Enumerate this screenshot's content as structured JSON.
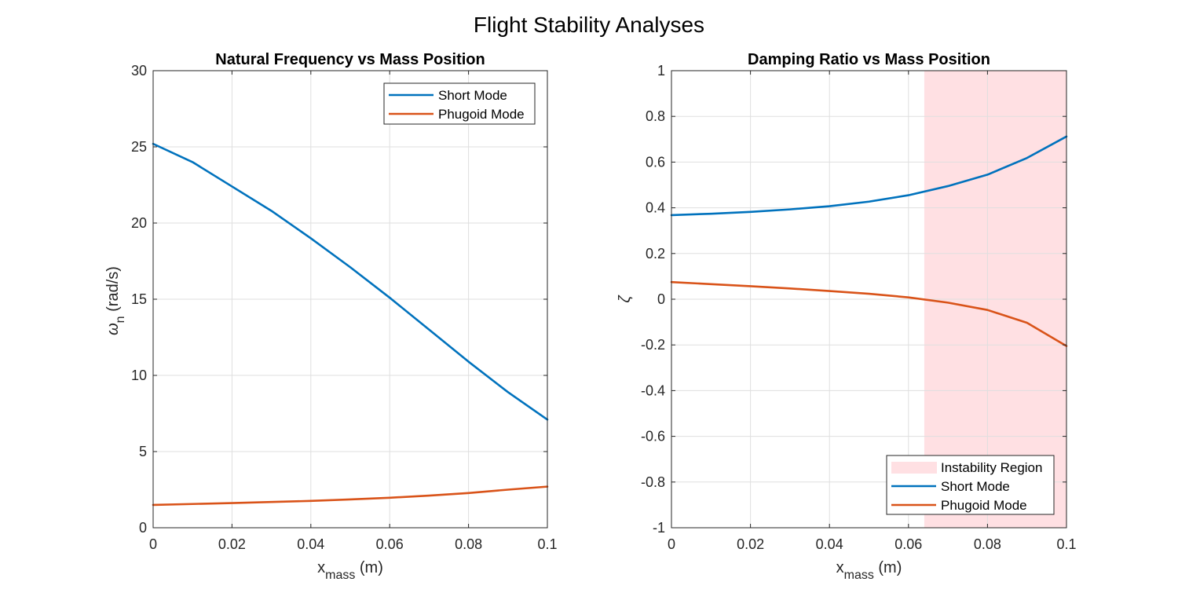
{
  "figure": {
    "title": "Flight Stability Analyses"
  },
  "chart_data": [
    {
      "type": "line",
      "title": "Natural Frequency vs Mass Position",
      "xlabel": {
        "main": "x",
        "sub": "mass",
        "unit": "(m)"
      },
      "ylabel": {
        "main": "ω",
        "sub": "n",
        "unit": "(rad/s)"
      },
      "xlim": [
        0,
        0.1
      ],
      "ylim": [
        0,
        30
      ],
      "xticks": [
        "0",
        "0.02",
        "0.04",
        "0.06",
        "0.08",
        "0.1"
      ],
      "yticks": [
        "0",
        "5",
        "10",
        "15",
        "20",
        "25",
        "30"
      ],
      "grid": true,
      "legend_position": "top-right",
      "x": [
        0,
        0.01,
        0.02,
        0.03,
        0.04,
        0.05,
        0.06,
        0.07,
        0.08,
        0.09,
        0.1
      ],
      "series": [
        {
          "name": "Short Mode",
          "color": "#0072BD",
          "values": [
            25.2,
            24.0,
            22.4,
            20.8,
            19.0,
            17.1,
            15.1,
            13.0,
            10.9,
            8.9,
            7.1
          ]
        },
        {
          "name": "Phugoid Mode",
          "color": "#D95319",
          "values": [
            1.5,
            1.56,
            1.62,
            1.69,
            1.76,
            1.86,
            1.97,
            2.11,
            2.28,
            2.5,
            2.7
          ]
        }
      ]
    },
    {
      "type": "line",
      "title": "Damping Ratio vs Mass Position",
      "xlabel": {
        "main": "x",
        "sub": "mass",
        "unit": "(m)"
      },
      "ylabel": {
        "main": "ζ",
        "sub": "",
        "unit": ""
      },
      "xlim": [
        0,
        0.1
      ],
      "ylim": [
        -1,
        1
      ],
      "xticks": [
        "0",
        "0.02",
        "0.04",
        "0.06",
        "0.08",
        "0.1"
      ],
      "yticks": [
        "-1",
        "-0.8",
        "-0.6",
        "-0.4",
        "-0.2",
        "0",
        "0.2",
        "0.4",
        "0.6",
        "0.8",
        "1"
      ],
      "grid": true,
      "legend_position": "bottom-right",
      "region": {
        "name": "Instability Region",
        "x_start": 0.064,
        "x_end": 0.1,
        "color": "#FFE0E3"
      },
      "x": [
        0,
        0.01,
        0.02,
        0.03,
        0.04,
        0.05,
        0.06,
        0.07,
        0.08,
        0.09,
        0.1
      ],
      "series": [
        {
          "name": "Short Mode",
          "color": "#0072BD",
          "values": [
            0.368,
            0.374,
            0.382,
            0.393,
            0.407,
            0.427,
            0.455,
            0.495,
            0.545,
            0.618,
            0.712
          ]
        },
        {
          "name": "Phugoid Mode",
          "color": "#D95319",
          "values": [
            0.075,
            0.066,
            0.057,
            0.047,
            0.036,
            0.024,
            0.008,
            -0.015,
            -0.047,
            -0.103,
            -0.205
          ]
        }
      ]
    }
  ]
}
